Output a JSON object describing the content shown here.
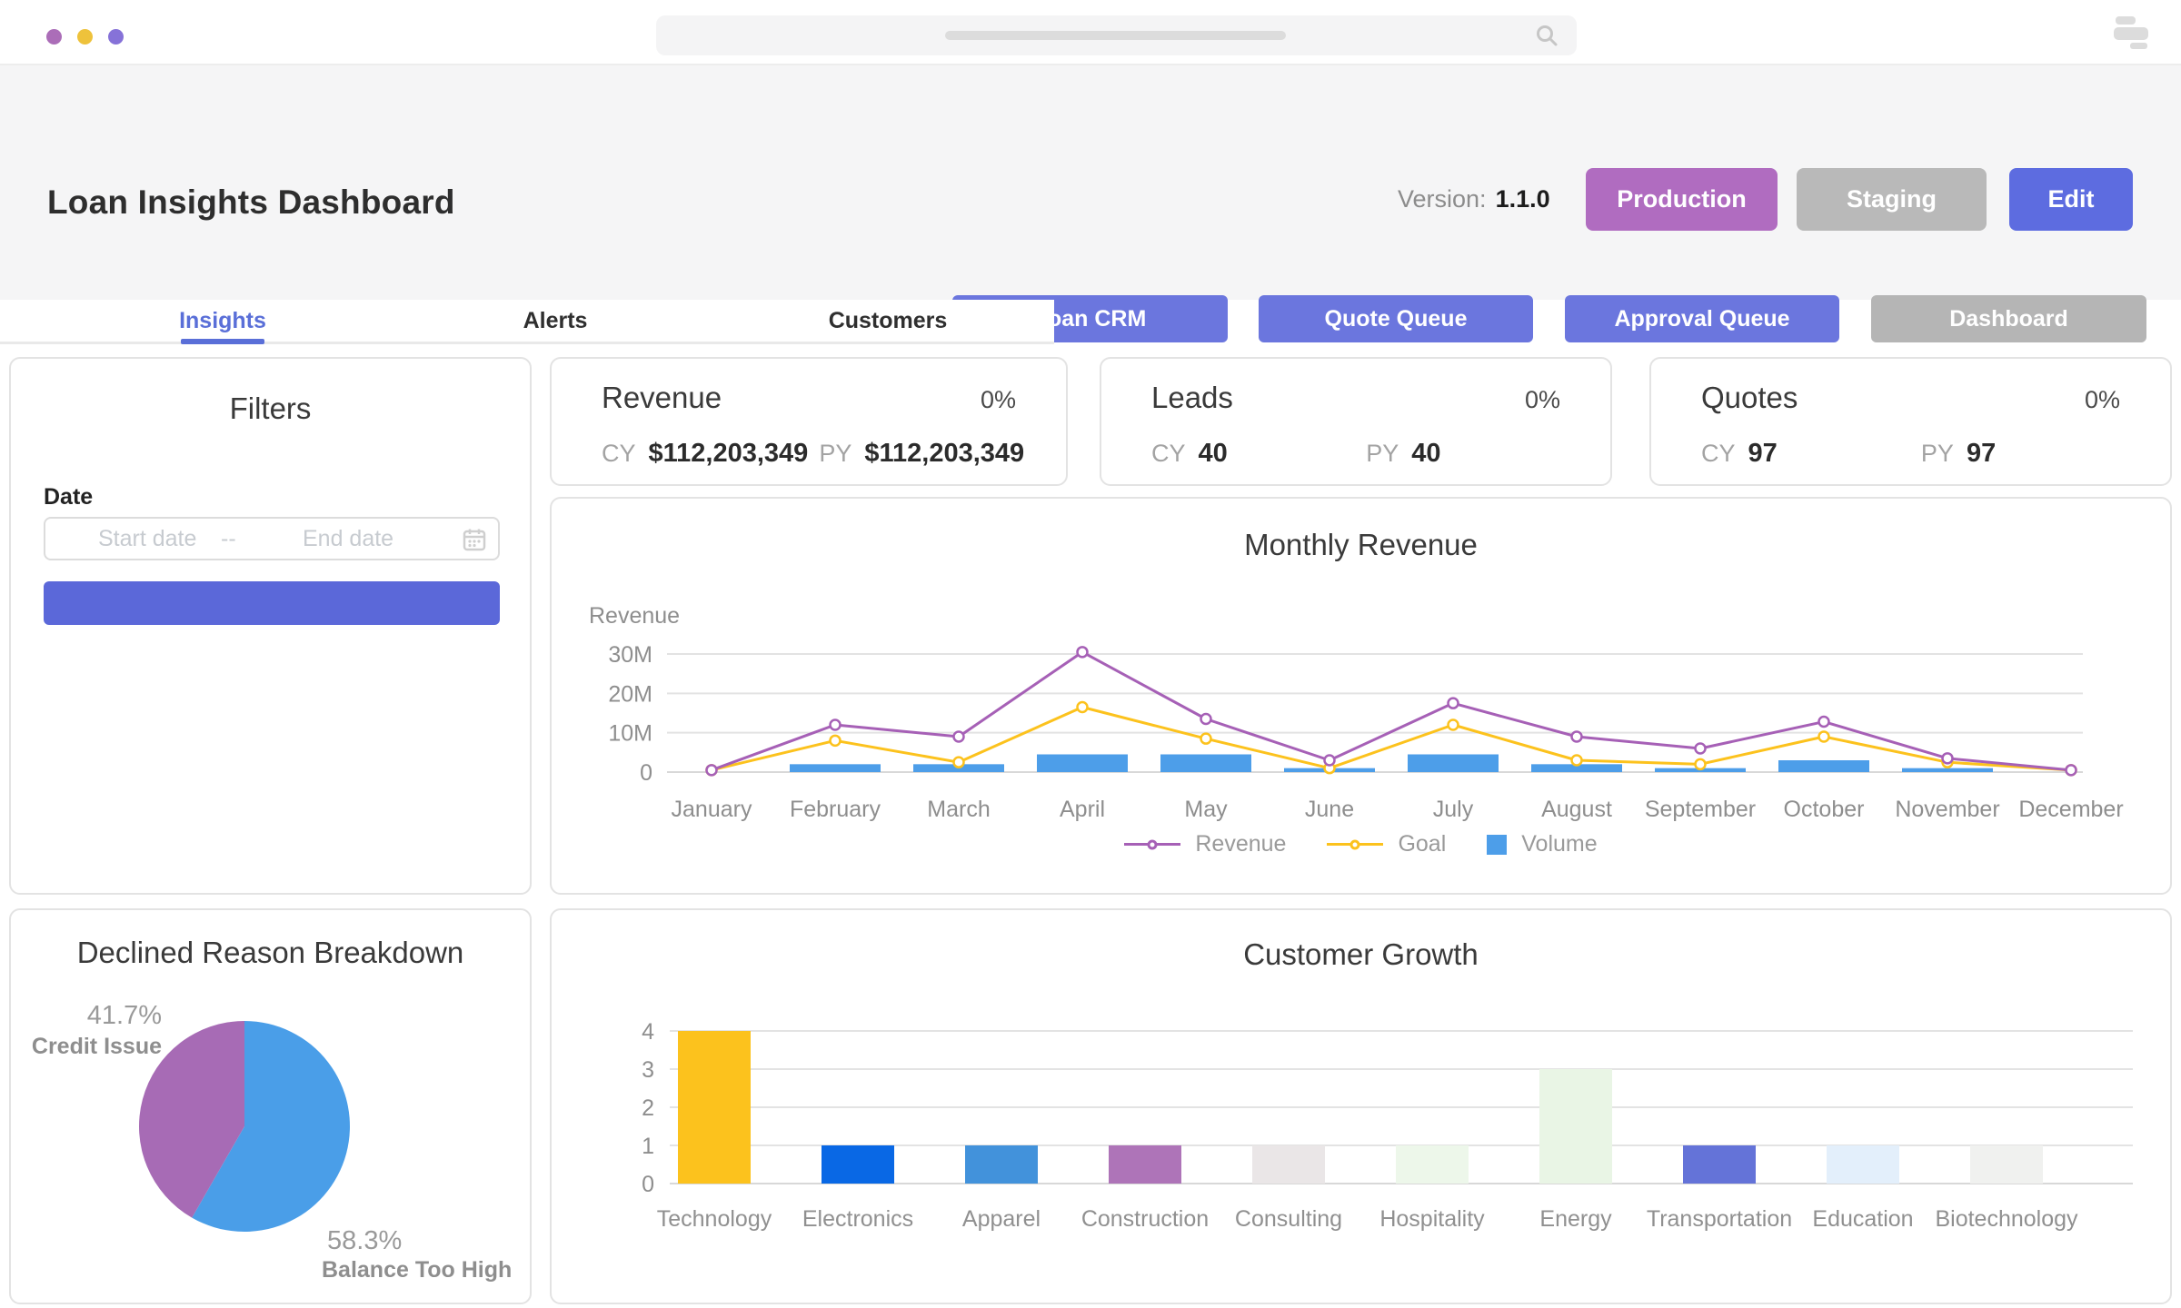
{
  "chrome": {
    "traffic_lights": [
      "#ab6db8",
      "#eec23b",
      "#8672d8"
    ],
    "search_text": ""
  },
  "header": {
    "title": "Loan Insights Dashboard",
    "version_label": "Version:",
    "version_value": "1.1.0",
    "env_buttons": [
      {
        "label": "Production",
        "color": "#b06cc0"
      },
      {
        "label": "Staging",
        "color": "#b9b9b9"
      },
      {
        "label": "Edit",
        "color": "#5d6ce0"
      }
    ],
    "nav_buttons": [
      {
        "label": "Loan CRM",
        "color": "#6b76de"
      },
      {
        "label": "Quote Queue",
        "color": "#6b76de"
      },
      {
        "label": "Approval Queue",
        "color": "#6b76de"
      },
      {
        "label": "Dashboard",
        "color": "#b5b5b5"
      }
    ]
  },
  "tabs": {
    "active_color": "#5a6fd8",
    "items": [
      {
        "label": "Insights",
        "active": true
      },
      {
        "label": "Alerts",
        "active": false
      },
      {
        "label": "Customers",
        "active": false
      }
    ]
  },
  "filters": {
    "title": "Filters",
    "date_label": "Date",
    "start_placeholder": "Start date",
    "separator": "--",
    "end_placeholder": "End date",
    "apply_label": "",
    "apply_color": "#5b68d9"
  },
  "kpis": [
    {
      "title": "Revenue",
      "delta": "0%",
      "cy_label": "CY",
      "cy_value": "$112,203,349",
      "py_label": "PY",
      "py_value": "$112,203,349"
    },
    {
      "title": "Leads",
      "delta": "0%",
      "cy_label": "CY",
      "cy_value": "40",
      "py_label": "PY",
      "py_value": "40"
    },
    {
      "title": "Quotes",
      "delta": "0%",
      "cy_label": "CY",
      "cy_value": "97",
      "py_label": "PY",
      "py_value": "97"
    }
  ],
  "chart_data": [
    {
      "id": "monthly-revenue",
      "type": "line",
      "title": "Monthly Revenue",
      "ylabel": "Revenue",
      "categories": [
        "January",
        "February",
        "March",
        "April",
        "May",
        "June",
        "July",
        "August",
        "September",
        "October",
        "November",
        "December"
      ],
      "ylim": [
        0,
        30000000
      ],
      "yticks": [
        {
          "v": 0,
          "label": "0"
        },
        {
          "v": 10000000,
          "label": "10M"
        },
        {
          "v": 20000000,
          "label": "20M"
        },
        {
          "v": 30000000,
          "label": "30M"
        }
      ],
      "grid": true,
      "legend_position": "bottom",
      "series": [
        {
          "name": "Revenue",
          "kind": "line",
          "color": "#a660b6",
          "values": [
            500000,
            12000000,
            9000000,
            30500000,
            13500000,
            3000000,
            17500000,
            9000000,
            6000000,
            12800000,
            3500000,
            500000
          ]
        },
        {
          "name": "Goal",
          "kind": "line",
          "color": "#fcc21d",
          "values": [
            500000,
            8000000,
            2500000,
            16500000,
            8500000,
            1000000,
            12000000,
            3000000,
            2000000,
            9000000,
            2500000,
            500000
          ]
        },
        {
          "name": "Volume",
          "kind": "bar",
          "color": "#4d9ee9",
          "values": [
            0,
            2000000,
            2000000,
            4500000,
            4500000,
            1000000,
            4500000,
            2000000,
            1000000,
            3000000,
            1000000,
            0
          ]
        }
      ]
    },
    {
      "id": "declined-reasons",
      "type": "pie",
      "title": "Declined Reason Breakdown",
      "start_angle": "top",
      "direction": "clockwise",
      "slices": [
        {
          "label": "Balance Too High",
          "pct": 58.3,
          "pct_label": "58.3%",
          "color": "#4a9ee8"
        },
        {
          "label": "Credit Issue",
          "pct": 41.7,
          "pct_label": "41.7%",
          "color": "#a76bb5"
        }
      ]
    },
    {
      "id": "customer-growth",
      "type": "bar",
      "title": "Customer Growth",
      "categories": [
        "Technology",
        "Electronics",
        "Apparel",
        "Construction",
        "Consulting",
        "Hospitality",
        "Energy",
        "Transportation",
        "Education",
        "Biotechnology"
      ],
      "values": [
        4,
        1,
        1,
        1,
        1,
        1,
        3,
        1,
        1,
        1
      ],
      "colors": [
        "#fcc21d",
        "#0968e5",
        "#4292db",
        "#ae74b8",
        "#eae6e7",
        "#edf7ea",
        "#e9f5e5",
        "#6473d8",
        "#e3effb",
        "#f0f1ef"
      ],
      "ylim": [
        0,
        4
      ],
      "yticks": [
        0,
        1,
        2,
        3,
        4
      ],
      "grid": true
    }
  ]
}
